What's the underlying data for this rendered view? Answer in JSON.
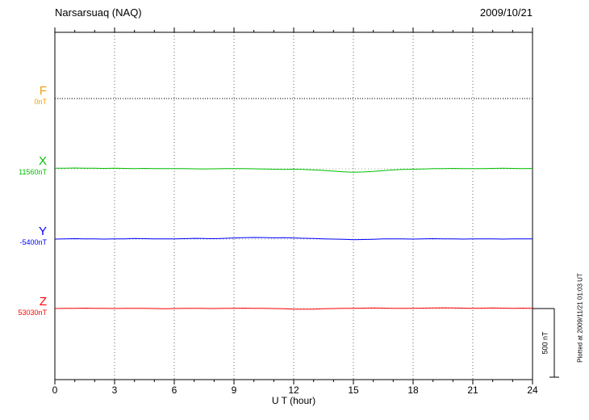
{
  "header": {
    "title": "Narsarsuaq (NAQ)",
    "date": "2009/10/21"
  },
  "x_axis": {
    "label": "U T (hour)",
    "ticks": [
      "0",
      "3",
      "6",
      "9",
      "12",
      "15",
      "18",
      "21",
      "24"
    ],
    "tick_hours": [
      0,
      3,
      6,
      9,
      12,
      15,
      18,
      21,
      24
    ]
  },
  "scale_bar": {
    "label": "500 nT",
    "nT": 500
  },
  "plotted_note": "Plotted at 2009/11/21 01:03 UT",
  "chart_data": {
    "type": "line",
    "title": "Narsarsuaq (NAQ)",
    "station_code": "NAQ",
    "date": "2009/10/21",
    "xlabel": "U T (hour)",
    "x_unit": "hour",
    "x_range": [
      0,
      24
    ],
    "x_step_hours": 0.5,
    "grid": "dotted",
    "scale_bar_nT": 500,
    "series": [
      {
        "name": "F",
        "baseline_label": "0nT",
        "baseline_nT": 0,
        "label_color": "#f0a000",
        "trace_color": "#000000",
        "trace_style": "dotted",
        "values": [
          0,
          0,
          0,
          0,
          0,
          0,
          0,
          0,
          0,
          0,
          0,
          0,
          0,
          0,
          0,
          0,
          0,
          0,
          0,
          0,
          0,
          0,
          0,
          0,
          0,
          0,
          0,
          0,
          0,
          0,
          0,
          0,
          0,
          0,
          0,
          0,
          0,
          0,
          0,
          0,
          0,
          0,
          0,
          0,
          0,
          0,
          0,
          0,
          0
        ]
      },
      {
        "name": "X",
        "baseline_label": "11560nT",
        "baseline_nT": 11560,
        "label_color": "#00c000",
        "trace_color": "#00c000",
        "trace_style": "solid",
        "values": [
          4,
          5,
          6,
          5,
          4,
          3,
          4,
          3,
          2,
          3,
          2,
          1,
          2,
          1,
          0,
          -1,
          0,
          1,
          2,
          1,
          0,
          -1,
          -3,
          -4,
          -3,
          -5,
          -8,
          -12,
          -17,
          -22,
          -25,
          -23,
          -19,
          -13,
          -8,
          -5,
          -3,
          -1,
          1,
          2,
          3,
          2,
          1,
          2,
          3,
          4,
          3,
          2,
          3
        ]
      },
      {
        "name": "Y",
        "baseline_label": "-5400nT",
        "baseline_nT": -5400,
        "label_color": "#0000ff",
        "trace_color": "#0000ff",
        "trace_style": "solid",
        "values": [
          0,
          1,
          3,
          2,
          1,
          0,
          1,
          2,
          4,
          3,
          2,
          1,
          2,
          3,
          5,
          4,
          3,
          5,
          8,
          10,
          12,
          11,
          9,
          10,
          8,
          6,
          4,
          2,
          0,
          -2,
          -4,
          -3,
          -1,
          1,
          2,
          1,
          0,
          2,
          3,
          2,
          1,
          0,
          1,
          2,
          1,
          0,
          1,
          2,
          1
        ]
      },
      {
        "name": "Z",
        "baseline_label": "53030nT",
        "baseline_nT": 53030,
        "label_color": "#ff0000",
        "trace_color": "#ff0000",
        "trace_style": "solid",
        "values": [
          0,
          1,
          2,
          3,
          2,
          1,
          0,
          1,
          2,
          1,
          0,
          -1,
          0,
          1,
          2,
          1,
          0,
          1,
          2,
          3,
          2,
          1,
          0,
          -2,
          -4,
          -5,
          -4,
          -2,
          0,
          1,
          2,
          3,
          4,
          3,
          2,
          1,
          2,
          3,
          4,
          5,
          4,
          3,
          2,
          3,
          4,
          3,
          2,
          3,
          2
        ]
      }
    ]
  }
}
